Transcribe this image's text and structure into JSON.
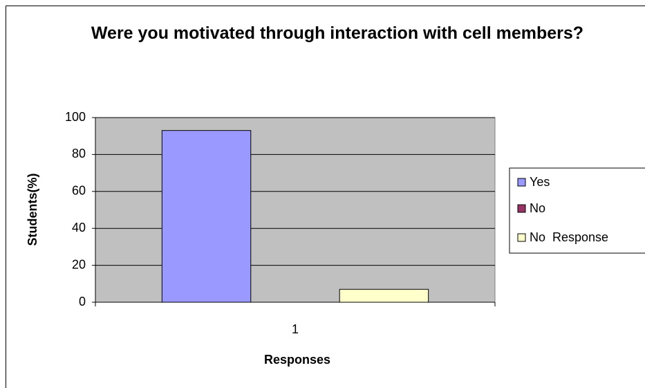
{
  "chart_data": {
    "type": "bar",
    "title": "Were you motivated through interaction with cell members?",
    "x_label": "Responses",
    "y_label": "Students(%)",
    "categories": [
      "1"
    ],
    "series": [
      {
        "name": "Yes",
        "color": "#9999ff",
        "values": [
          93
        ]
      },
      {
        "name": "No",
        "color": "#993366",
        "values": [
          0
        ]
      },
      {
        "name": "No  Response",
        "color": "#ffffcc",
        "values": [
          7
        ]
      }
    ],
    "ylim": [
      0,
      100
    ],
    "yticks": [
      0,
      20,
      40,
      60,
      80,
      100
    ],
    "grid": true,
    "legend": "right"
  }
}
